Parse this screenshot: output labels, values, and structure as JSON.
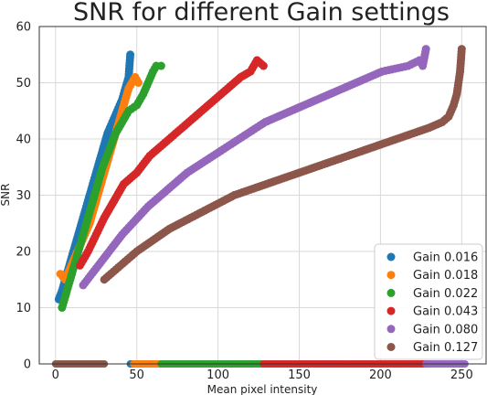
{
  "chart_data": {
    "type": "scatter",
    "title": "SNR for different Gain settings",
    "xlabel": "Mean pixel intensity",
    "ylabel": "SNR",
    "xlim": [
      -10,
      265
    ],
    "ylim": [
      0,
      60
    ],
    "xticks": [
      0,
      50,
      100,
      150,
      200,
      250
    ],
    "yticks": [
      0,
      10,
      20,
      30,
      40,
      50,
      60
    ],
    "grid": true,
    "legend_position": "lower-right",
    "series": [
      {
        "name": "Gain 0.016",
        "color": "#1f77b4",
        "points": [
          [
            2,
            11.5
          ],
          [
            4,
            13
          ],
          [
            6,
            15
          ],
          [
            8,
            17
          ],
          [
            10,
            19
          ],
          [
            12,
            21
          ],
          [
            14,
            23
          ],
          [
            16,
            25
          ],
          [
            18,
            27
          ],
          [
            20,
            29
          ],
          [
            22,
            31
          ],
          [
            24,
            33
          ],
          [
            26,
            35
          ],
          [
            28,
            37
          ],
          [
            30,
            39
          ],
          [
            32,
            41
          ],
          [
            35,
            43
          ],
          [
            38,
            45
          ],
          [
            41,
            47
          ],
          [
            43,
            49
          ],
          [
            45,
            51
          ],
          [
            46,
            55
          ]
        ],
        "zero_band": [
          46,
          60
        ]
      },
      {
        "name": "Gain 0.018",
        "color": "#ff7f0e",
        "points": [
          [
            3,
            16
          ],
          [
            6,
            15
          ],
          [
            9,
            17
          ],
          [
            12,
            19
          ],
          [
            15,
            21
          ],
          [
            18,
            23
          ],
          [
            21,
            25
          ],
          [
            24,
            28
          ],
          [
            27,
            31
          ],
          [
            30,
            34
          ],
          [
            33,
            37
          ],
          [
            36,
            40
          ],
          [
            39,
            43
          ],
          [
            42,
            46
          ],
          [
            45,
            49
          ],
          [
            47,
            50
          ],
          [
            49,
            51
          ],
          [
            51,
            50
          ]
        ],
        "zero_band": [
          48,
          65
        ]
      },
      {
        "name": "Gain 0.022",
        "color": "#2ca02c",
        "points": [
          [
            4,
            10
          ],
          [
            6,
            12
          ],
          [
            9,
            15
          ],
          [
            12,
            18
          ],
          [
            15,
            21
          ],
          [
            18,
            24
          ],
          [
            21,
            27
          ],
          [
            25,
            31
          ],
          [
            29,
            35
          ],
          [
            33,
            38
          ],
          [
            37,
            41
          ],
          [
            41,
            43
          ],
          [
            45,
            45
          ],
          [
            50,
            46
          ],
          [
            54,
            48
          ],
          [
            57,
            50
          ],
          [
            60,
            52
          ],
          [
            62,
            53
          ],
          [
            65,
            53
          ]
        ],
        "zero_band": [
          65,
          128
        ]
      },
      {
        "name": "Gain 0.043",
        "color": "#d62728",
        "points": [
          [
            15,
            17.5
          ],
          [
            20,
            20
          ],
          [
            25,
            23
          ],
          [
            30,
            26
          ],
          [
            36,
            29
          ],
          [
            42,
            32
          ],
          [
            50,
            34
          ],
          [
            58,
            37
          ],
          [
            66,
            39
          ],
          [
            74,
            41
          ],
          [
            82,
            43
          ],
          [
            90,
            45
          ],
          [
            98,
            47
          ],
          [
            106,
            49
          ],
          [
            114,
            51
          ],
          [
            120,
            52
          ],
          [
            124,
            54
          ],
          [
            128,
            53
          ]
        ],
        "zero_band": [
          128,
          230
        ]
      },
      {
        "name": "Gain 0.080",
        "color": "#9467bd",
        "points": [
          [
            17,
            14
          ],
          [
            25,
            17
          ],
          [
            33,
            20
          ],
          [
            41,
            23
          ],
          [
            49,
            25.5
          ],
          [
            57,
            28
          ],
          [
            65,
            30
          ],
          [
            73,
            32
          ],
          [
            81,
            34
          ],
          [
            89,
            35.5
          ],
          [
            97,
            37
          ],
          [
            105,
            38.5
          ],
          [
            113,
            40
          ],
          [
            121,
            41.5
          ],
          [
            129,
            43
          ],
          [
            137,
            44
          ],
          [
            145,
            45
          ],
          [
            153,
            46
          ],
          [
            161,
            47
          ],
          [
            169,
            48
          ],
          [
            177,
            49
          ],
          [
            185,
            50
          ],
          [
            193,
            51
          ],
          [
            201,
            52
          ],
          [
            209,
            52.5
          ],
          [
            217,
            53
          ],
          [
            224,
            54
          ],
          [
            226,
            53
          ],
          [
            228,
            56
          ]
        ],
        "zero_band": [
          228,
          252
        ]
      },
      {
        "name": "Gain 0.127",
        "color": "#8c564b",
        "points": [
          [
            30,
            15
          ],
          [
            40,
            17.5
          ],
          [
            50,
            20
          ],
          [
            60,
            22
          ],
          [
            70,
            24
          ],
          [
            80,
            25.5
          ],
          [
            90,
            27
          ],
          [
            100,
            28.5
          ],
          [
            110,
            30
          ],
          [
            120,
            31
          ],
          [
            130,
            32
          ],
          [
            140,
            33
          ],
          [
            150,
            34
          ],
          [
            160,
            35
          ],
          [
            170,
            36
          ],
          [
            180,
            37
          ],
          [
            190,
            38
          ],
          [
            200,
            39
          ],
          [
            210,
            40
          ],
          [
            220,
            41
          ],
          [
            230,
            42
          ],
          [
            238,
            43
          ],
          [
            242,
            44
          ],
          [
            245,
            46
          ],
          [
            247,
            48
          ],
          [
            248,
            50
          ],
          [
            249,
            52
          ],
          [
            250,
            56
          ]
        ],
        "zero_band": [
          0,
          30
        ]
      }
    ]
  }
}
